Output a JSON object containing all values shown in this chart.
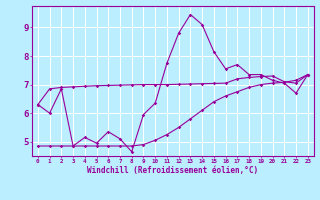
{
  "xlabel": "Windchill (Refroidissement éolien,°C)",
  "background_color": "#bbeeff",
  "grid_color": "#ffffff",
  "line_color": "#990099",
  "x_ticks": [
    0,
    1,
    2,
    3,
    4,
    5,
    6,
    7,
    8,
    9,
    10,
    11,
    12,
    13,
    14,
    15,
    16,
    17,
    18,
    19,
    20,
    21,
    22,
    23
  ],
  "y_ticks": [
    5,
    6,
    7,
    8,
    9
  ],
  "xlim": [
    -0.5,
    23.5
  ],
  "ylim": [
    4.5,
    9.75
  ],
  "line1_x": [
    0,
    1,
    2,
    3,
    4,
    5,
    6,
    7,
    8,
    9,
    10,
    11,
    12,
    13,
    14,
    15,
    16,
    17,
    18,
    19,
    20,
    21,
    22,
    23
  ],
  "line1_y": [
    6.3,
    6.0,
    6.85,
    4.85,
    5.15,
    4.95,
    5.35,
    5.1,
    4.65,
    5.95,
    6.35,
    7.75,
    8.8,
    9.45,
    9.1,
    8.15,
    7.55,
    7.7,
    7.35,
    7.35,
    7.15,
    7.05,
    6.7,
    7.35
  ],
  "line2_x": [
    0,
    1,
    2,
    3,
    4,
    5,
    6,
    7,
    8,
    9,
    10,
    11,
    12,
    13,
    14,
    15,
    16,
    17,
    18,
    19,
    20,
    21,
    22,
    23
  ],
  "line2_y": [
    6.3,
    6.85,
    6.9,
    6.92,
    6.94,
    6.96,
    6.97,
    6.98,
    6.99,
    7.0,
    7.0,
    7.0,
    7.01,
    7.02,
    7.03,
    7.04,
    7.05,
    7.2,
    7.25,
    7.28,
    7.3,
    7.1,
    7.05,
    7.35
  ],
  "line3_x": [
    0,
    1,
    2,
    3,
    4,
    5,
    6,
    7,
    8,
    9,
    10,
    11,
    12,
    13,
    14,
    15,
    16,
    17,
    18,
    19,
    20,
    21,
    22,
    23
  ],
  "line3_y": [
    4.85,
    4.85,
    4.85,
    4.85,
    4.85,
    4.85,
    4.85,
    4.85,
    4.85,
    4.9,
    5.05,
    5.25,
    5.5,
    5.8,
    6.1,
    6.4,
    6.6,
    6.75,
    6.9,
    7.0,
    7.05,
    7.08,
    7.15,
    7.35
  ]
}
